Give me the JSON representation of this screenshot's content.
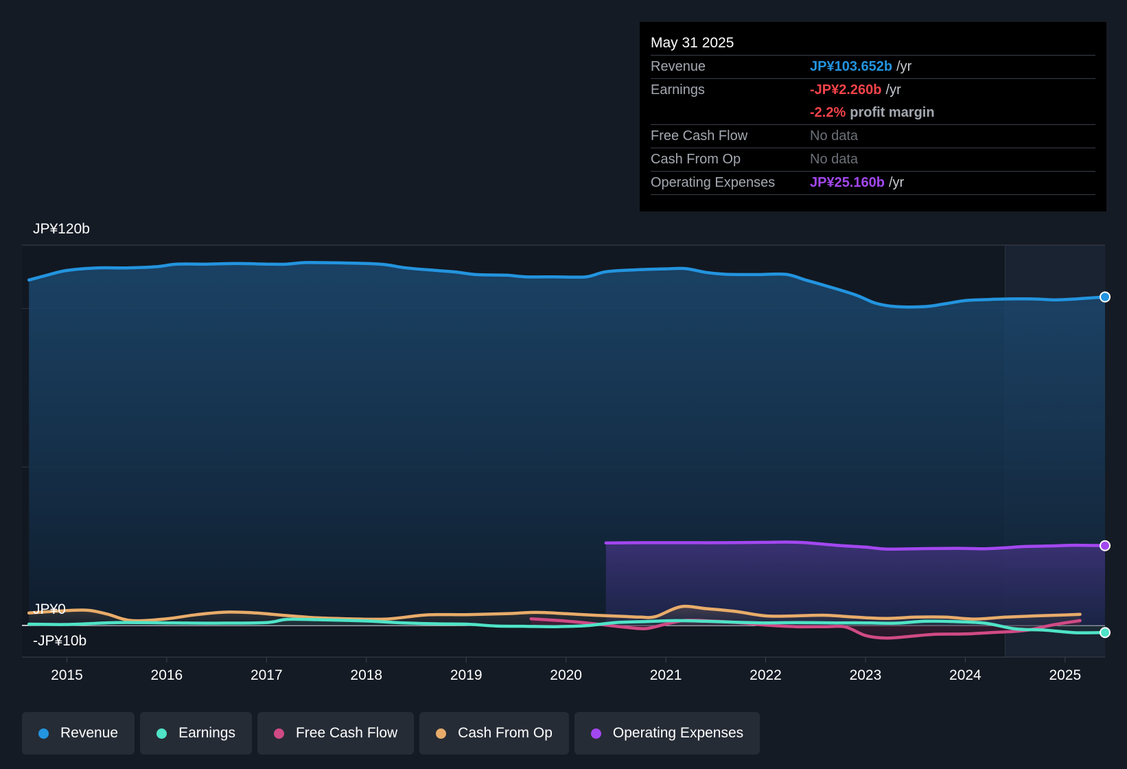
{
  "tooltip": {
    "date": "May 31 2025",
    "revenue_label": "Revenue",
    "revenue_value": "JP¥103.652b",
    "earnings_label": "Earnings",
    "earnings_value": "-JP¥2.260b",
    "margin_value": "-2.2%",
    "margin_text": "profit margin",
    "fcf_label": "Free Cash Flow",
    "fcf_value": "No data",
    "cfo_label": "Cash From Op",
    "cfo_value": "No data",
    "opex_label": "Operating Expenses",
    "opex_value": "JP¥25.160b",
    "unit": "/yr"
  },
  "colors": {
    "revenue": "#2394df",
    "earnings": "#4fe3c7",
    "fcf": "#d04a85",
    "cfo": "#e8ac6a",
    "opex": "#a347f0",
    "negative": "#f4434a"
  },
  "legend": [
    {
      "label": "Revenue",
      "color": "#2394df"
    },
    {
      "label": "Earnings",
      "color": "#4fe3c7"
    },
    {
      "label": "Free Cash Flow",
      "color": "#d04a85"
    },
    {
      "label": "Cash From Op",
      "color": "#e8ac6a"
    },
    {
      "label": "Operating Expenses",
      "color": "#a347f0"
    }
  ],
  "chart_data": {
    "type": "line",
    "title": "",
    "y_axis_labels": [
      "JP¥120b",
      "JP¥0",
      "-JP¥10b"
    ],
    "ylim": [
      -10,
      120
    ],
    "xlim": [
      2014.55,
      2025.4
    ],
    "x_ticks": [
      2015,
      2016,
      2017,
      2018,
      2019,
      2020,
      2021,
      2022,
      2023,
      2024,
      2025
    ],
    "x_tick_labels": [
      "2015",
      "2016",
      "2017",
      "2018",
      "2019",
      "2020",
      "2021",
      "2022",
      "2023",
      "2024",
      "2025"
    ],
    "grid_values": [
      100,
      50,
      0
    ],
    "forecast_start": 2024.4,
    "series": [
      {
        "name": "Revenue",
        "key": "revenue",
        "fill": true,
        "x": [
          2014.62,
          2014.8,
          2015.0,
          2015.3,
          2015.6,
          2015.9,
          2016.1,
          2016.4,
          2016.7,
          2017.0,
          2017.2,
          2017.4,
          2017.7,
          2018.0,
          2018.2,
          2018.4,
          2018.7,
          2018.9,
          2019.1,
          2019.4,
          2019.6,
          2019.9,
          2020.2,
          2020.4,
          2020.7,
          2021.0,
          2021.2,
          2021.4,
          2021.6,
          2021.9,
          2022.2,
          2022.4,
          2022.6,
          2022.9,
          2023.1,
          2023.3,
          2023.6,
          2023.8,
          2024.0,
          2024.2,
          2024.4,
          2024.7,
          2024.9,
          2025.1,
          2025.4
        ],
        "y": [
          109,
          110.5,
          112,
          112.8,
          112.8,
          113.2,
          114,
          114,
          114.2,
          114,
          114,
          114.5,
          114.4,
          114.2,
          113.8,
          112.8,
          112,
          111.5,
          110.7,
          110.5,
          110,
          110,
          110,
          111.6,
          112.2,
          112.5,
          112.6,
          111.4,
          110.8,
          110.7,
          110.8,
          109,
          107.2,
          104.3,
          101.7,
          100.6,
          100.6,
          101.5,
          102.5,
          102.8,
          103,
          103,
          102.7,
          103,
          103.652
        ]
      },
      {
        "name": "Operating Expenses",
        "key": "opex",
        "fill": true,
        "x": [
          2020.4,
          2020.8,
          2021.2,
          2021.6,
          2022.0,
          2022.2,
          2022.4,
          2022.7,
          2023.0,
          2023.2,
          2023.5,
          2023.8,
          2024.0,
          2024.2,
          2024.4,
          2024.6,
          2024.9,
          2025.1,
          2025.4
        ],
        "y": [
          26,
          26.1,
          26.1,
          26.1,
          26.2,
          26.3,
          26.1,
          25.3,
          24.7,
          24.1,
          24.2,
          24.3,
          24.3,
          24.2,
          24.5,
          24.9,
          25.1,
          25.3,
          25.16
        ]
      },
      {
        "name": "Cash From Op",
        "key": "cfo",
        "fill": true,
        "x": [
          2014.62,
          2014.9,
          2015.2,
          2015.4,
          2015.65,
          2016.0,
          2016.3,
          2016.6,
          2016.9,
          2017.2,
          2017.5,
          2017.8,
          2018.2,
          2018.6,
          2019.0,
          2019.4,
          2019.7,
          2020.0,
          2020.3,
          2020.6,
          2020.75,
          2020.9,
          2021.15,
          2021.4,
          2021.7,
          2022.0,
          2022.3,
          2022.6,
          2022.9,
          2023.2,
          2023.5,
          2023.8,
          2024.1,
          2024.4,
          2024.7,
          2025.0,
          2025.15
        ],
        "y": [
          3.9,
          4.5,
          4.8,
          3.6,
          1.5,
          2.1,
          3.4,
          4.2,
          3.9,
          3.1,
          2.4,
          2.1,
          2.0,
          3.3,
          3.4,
          3.7,
          4.1,
          3.7,
          3.2,
          2.8,
          2.6,
          2.8,
          5.9,
          5.3,
          4.4,
          3.0,
          3.0,
          3.2,
          2.6,
          2.2,
          2.6,
          2.6,
          2.0,
          2.6,
          3.0,
          3.3,
          3.5
        ]
      },
      {
        "name": "Free Cash Flow",
        "key": "fcf",
        "fill": true,
        "x": [
          2019.65,
          2019.9,
          2020.1,
          2020.4,
          2020.6,
          2020.8,
          2021.0,
          2021.2,
          2021.5,
          2021.8,
          2022.0,
          2022.3,
          2022.6,
          2022.8,
          2023.0,
          2023.2,
          2023.4,
          2023.7,
          2024.0,
          2024.3,
          2024.6,
          2024.9,
          2025.15
        ],
        "y": [
          2.1,
          1.6,
          1.1,
          0.1,
          -0.6,
          -1.0,
          0.4,
          1.6,
          1.3,
          0.7,
          0.1,
          -0.4,
          -0.4,
          -0.5,
          -3.2,
          -4.0,
          -3.6,
          -2.8,
          -2.7,
          -2.2,
          -1.6,
          0.3,
          1.5
        ]
      },
      {
        "name": "Earnings",
        "key": "earnings",
        "fill": true,
        "x": [
          2014.62,
          2015.0,
          2015.5,
          2016.0,
          2016.5,
          2017.0,
          2017.2,
          2017.5,
          2018.0,
          2018.3,
          2018.7,
          2019.0,
          2019.3,
          2019.6,
          2019.9,
          2020.2,
          2020.5,
          2020.8,
          2021.1,
          2021.4,
          2021.7,
          2022.0,
          2022.3,
          2022.7,
          2023.0,
          2023.3,
          2023.6,
          2023.9,
          2024.2,
          2024.5,
          2024.8,
          2025.1,
          2025.4
        ],
        "y": [
          0.4,
          0.3,
          0.9,
          0.8,
          0.7,
          0.9,
          1.9,
          1.8,
          1.4,
          0.9,
          0.5,
          0.4,
          -0.2,
          -0.3,
          -0.4,
          -0.1,
          0.9,
          1.2,
          1.5,
          1.3,
          1.0,
          0.8,
          0.9,
          0.8,
          0.8,
          0.7,
          1.3,
          1.2,
          0.7,
          -1.1,
          -1.5,
          -2.3,
          -2.26
        ]
      }
    ]
  }
}
